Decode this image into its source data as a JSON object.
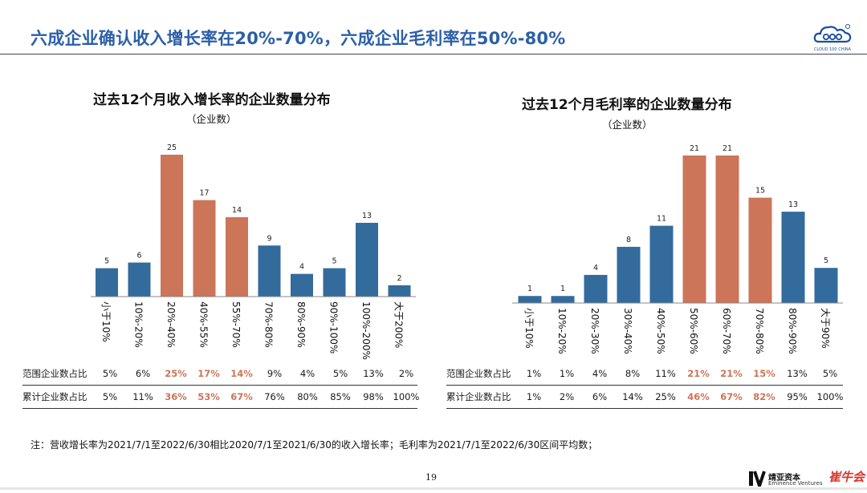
{
  "header": {
    "title": "六成企业确认收入增长率在20%-70%，六成企业毛利率在50%-80%",
    "logo_text": "CLOUD 100 CHINA"
  },
  "colors": {
    "blue": "#336b9c",
    "orange": "#cc7558",
    "title_blue": "#2b5fa8"
  },
  "chart_data": [
    {
      "type": "bar",
      "title": "过去12个月收入增长率的企业数量分布",
      "subtitle": "（企业数）",
      "categories": [
        "小于10%",
        "10%-20%",
        "20%-40%",
        "40%-55%",
        "55%-70%",
        "70%-80%",
        "80%-90%",
        "90%-100%",
        "100%-200%",
        "大于200%"
      ],
      "values": [
        5,
        6,
        25,
        17,
        14,
        9,
        4,
        5,
        13,
        2
      ],
      "highlight": [
        false,
        false,
        true,
        true,
        true,
        false,
        false,
        false,
        false,
        false
      ],
      "ylim": [
        0,
        25
      ],
      "grid": false
    },
    {
      "type": "bar",
      "title": "过去12个月毛利率的企业数量分布",
      "subtitle": "（企业数）",
      "categories": [
        "小于10%",
        "10%-20%",
        "20%-30%",
        "30%-40%",
        "40%-50%",
        "50%-60%",
        "60%-70%",
        "70%-80%",
        "80%-90%",
        "大于90%"
      ],
      "values": [
        1,
        1,
        4,
        8,
        11,
        21,
        21,
        15,
        13,
        5
      ],
      "highlight": [
        false,
        false,
        false,
        false,
        false,
        true,
        true,
        true,
        false,
        false
      ],
      "ylim": [
        0,
        21
      ],
      "grid": false
    }
  ],
  "tables": [
    {
      "rows": [
        {
          "label": "范围企业数占比",
          "cells": [
            "5%",
            "6%",
            "25%",
            "17%",
            "14%",
            "9%",
            "4%",
            "5%",
            "13%",
            "2%"
          ]
        },
        {
          "label": "累计企业数占比",
          "cells": [
            "5%",
            "11%",
            "36%",
            "53%",
            "67%",
            "76%",
            "80%",
            "85%",
            "98%",
            "100%"
          ]
        }
      ]
    },
    {
      "rows": [
        {
          "label": "范围企业数占比",
          "cells": [
            "1%",
            "1%",
            "4%",
            "8%",
            "11%",
            "21%",
            "21%",
            "15%",
            "13%",
            "5%"
          ]
        },
        {
          "label": "累计企业数占比",
          "cells": [
            "1%",
            "2%",
            "6%",
            "14%",
            "25%",
            "46%",
            "67%",
            "82%",
            "95%",
            "100%"
          ]
        }
      ]
    }
  ],
  "footer": {
    "note": "注：营收增长率为2021/7/1至2022/6/30相比2020/7/1至2021/6/30的收入增长率；毛利率为2021/7/1至2022/6/30区间平均数；",
    "page_number": "19",
    "brand1_name": "靖亚资本",
    "brand1_sub": "Eminence Ventures",
    "brand2_name": "崔牛会"
  }
}
